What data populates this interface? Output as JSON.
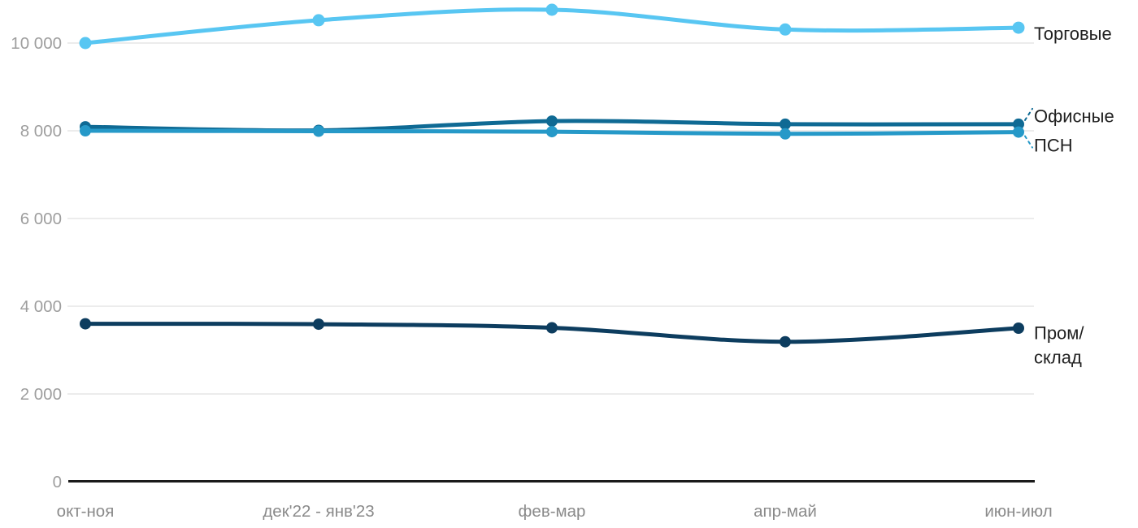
{
  "chart_data": {
    "type": "line",
    "categories": [
      "окт-ноя",
      "дек'22 - янв'23",
      "фев-мар",
      "апр-май",
      "июн-июл"
    ],
    "series": [
      {
        "name": "Торговые",
        "label_lines": [
          "Торговые"
        ],
        "color": "#58c6f2",
        "values": [
          10000,
          10520,
          10760,
          10310,
          10350
        ],
        "leader": false
      },
      {
        "name": "Офисные",
        "label_lines": [
          "Офисные"
        ],
        "color": "#0f6a94",
        "values": [
          8090,
          8010,
          8220,
          8150,
          8150
        ],
        "leader": true,
        "leader_direction": "up"
      },
      {
        "name": "ПСН",
        "label_lines": [
          "ПСН"
        ],
        "color": "#2699c8",
        "values": [
          8000,
          7990,
          7980,
          7930,
          7970
        ],
        "leader": true,
        "leader_direction": "down"
      },
      {
        "name": "Пром/склад",
        "label_lines": [
          "Пром/",
          "склад"
        ],
        "color": "#0d3d5f",
        "values": [
          3600,
          3590,
          3510,
          3190,
          3500
        ],
        "leader": false
      }
    ],
    "yticks": [
      0,
      2000,
      4000,
      6000,
      8000,
      10000
    ],
    "ytick_labels": [
      "0",
      "2 000",
      "4 000",
      "6 000",
      "8 000",
      "10 000"
    ],
    "ylim": [
      0,
      10800
    ],
    "xlabel": "",
    "ylabel": "",
    "title": "",
    "grid": true,
    "legend_position": "right-end-of-lines"
  },
  "colors": {
    "background": "#ffffff",
    "gridline": "#ececec",
    "axis": "#1a1a1a",
    "ytick_text": "#9e9e9e",
    "xtick_text": "#8a8a8a",
    "series_label_text": "#212121"
  }
}
